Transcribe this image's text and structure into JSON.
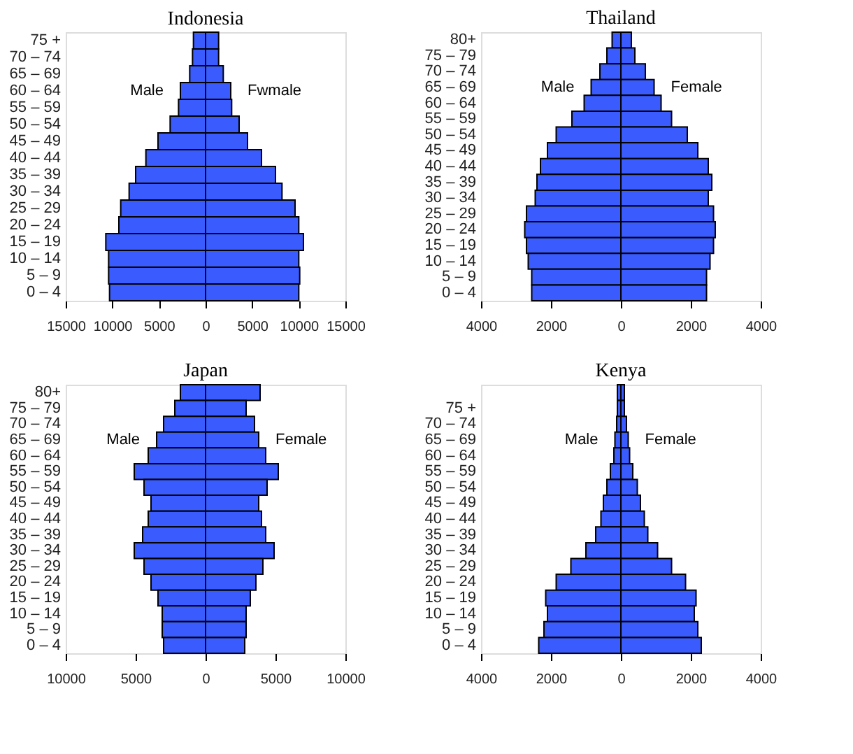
{
  "chart_data": [
    {
      "type": "bar",
      "orientation": "horizontal",
      "stacked": true,
      "title": "Indonesia",
      "categories": [
        "75 +",
        "70 – 74",
        "65 – 69",
        "60 – 64",
        "55 – 59",
        "50 – 54",
        "45 – 49",
        "40 – 44",
        "35 – 39",
        "30 – 34",
        "25 – 29",
        "20 – 24",
        "15 – 19",
        "10 – 14",
        "5 – 9",
        "0 – 4"
      ],
      "series": [
        {
          "name": "Male",
          "color": "#3a5cff",
          "values": [
            -1300,
            -1400,
            -1700,
            -2700,
            -2900,
            -3800,
            -5100,
            -6400,
            -7500,
            -8200,
            -9100,
            -9300,
            -10700,
            -10400,
            -10400,
            -10300
          ]
        },
        {
          "name": "Fwmale",
          "color": "#3a5cff",
          "values": [
            1400,
            1400,
            1900,
            2700,
            2800,
            3600,
            4500,
            6000,
            7500,
            8200,
            9600,
            10000,
            10500,
            10000,
            10100,
            10000
          ]
        }
      ],
      "xlim": [
        -15000,
        15000
      ],
      "xticks": [
        {
          "value": -15000,
          "label": "15000"
        },
        {
          "value": -10000,
          "label": "10000"
        },
        {
          "value": -5000,
          "label": "5000"
        },
        0,
        5000,
        10000,
        15000
      ]
    },
    {
      "type": "bar",
      "orientation": "horizontal",
      "stacked": true,
      "title": "Thailand",
      "categories": [
        "80+",
        "75 – 79",
        "70 – 74",
        "65 – 69",
        "60 – 64",
        "55 – 59",
        "50 – 54",
        "45 – 49",
        "40 – 44",
        "35 – 39",
        "30 – 34",
        "25 – 29",
        "20 – 24",
        "15 – 19",
        "10 – 14",
        "5 – 9",
        "0 – 4"
      ],
      "series": [
        {
          "name": "Male",
          "color": "#3a5cff",
          "values": [
            -250,
            -400,
            -600,
            -850,
            -1050,
            -1400,
            -1850,
            -2100,
            -2300,
            -2400,
            -2450,
            -2700,
            -2750,
            -2700,
            -2650,
            -2550,
            -2550
          ]
        },
        {
          "name": "Female",
          "color": "#3a5cff",
          "values": [
            300,
            400,
            700,
            950,
            1150,
            1450,
            1900,
            2200,
            2500,
            2600,
            2500,
            2650,
            2700,
            2650,
            2550,
            2450,
            2450
          ]
        }
      ],
      "xlim": [
        -4000,
        4000
      ],
      "xticks": [
        {
          "value": -4000,
          "label": "4000"
        },
        {
          "value": -2000,
          "label": "2000"
        },
        0,
        2000,
        4000
      ]
    },
    {
      "type": "bar",
      "orientation": "horizontal",
      "stacked": true,
      "title": "Japan",
      "categories": [
        "80+",
        "75 – 79",
        "70 – 74",
        "65 – 69",
        "60 – 64",
        "55 – 59",
        "50 – 54",
        "45 – 49",
        "40 – 44",
        "35 – 39",
        "30 – 34",
        "25 – 29",
        "20 – 24",
        "15 – 19",
        "10 – 14",
        "5 – 9",
        "0 – 4"
      ],
      "series": [
        {
          "name": "Male",
          "color": "#3a5cff",
          "values": [
            -1800,
            -2200,
            -3000,
            -3500,
            -4100,
            -5100,
            -4400,
            -3900,
            -4100,
            -4500,
            -5100,
            -4400,
            -3900,
            -3400,
            -3100,
            -3100,
            -3000
          ]
        },
        {
          "name": "Female",
          "color": "#3a5cff",
          "values": [
            3900,
            2900,
            3500,
            3800,
            4300,
            5200,
            4400,
            3800,
            4000,
            4300,
            4900,
            4100,
            3600,
            3200,
            2900,
            2900,
            2800
          ]
        }
      ],
      "xlim": [
        -10000,
        10000
      ],
      "xticks": [
        {
          "value": -10000,
          "label": "10000"
        },
        {
          "value": -5000,
          "label": "5000"
        },
        0,
        5000,
        10000
      ]
    },
    {
      "type": "bar",
      "orientation": "horizontal",
      "stacked": true,
      "title": "Kenya",
      "categories": [
        null,
        "75 +",
        "70 – 74",
        "65 – 69",
        "60 – 64",
        "55 – 59",
        "50 – 54",
        "45 – 49",
        "40 – 44",
        "35 – 39",
        "30 – 34",
        "25 – 29",
        "20 – 24",
        "15 – 19",
        "10 – 14",
        "5 – 9",
        "0 – 4"
      ],
      "series": [
        {
          "name": "Male",
          "color": "#3a5cff",
          "values": [
            -100,
            -100,
            -120,
            -170,
            -200,
            -300,
            -400,
            -500,
            -570,
            -720,
            -1000,
            -1430,
            -1850,
            -2150,
            -2100,
            -2200,
            -2350
          ]
        },
        {
          "name": "Female",
          "color": "#3a5cff",
          "values": [
            100,
            100,
            160,
            210,
            250,
            340,
            470,
            560,
            670,
            770,
            1050,
            1450,
            1850,
            2150,
            2100,
            2200,
            2300
          ]
        }
      ],
      "xlim": [
        -4000,
        4000
      ],
      "xticks": [
        {
          "value": -4000,
          "label": "4000"
        },
        {
          "value": -2000,
          "label": "2000"
        },
        0,
        2000,
        4000
      ]
    }
  ]
}
